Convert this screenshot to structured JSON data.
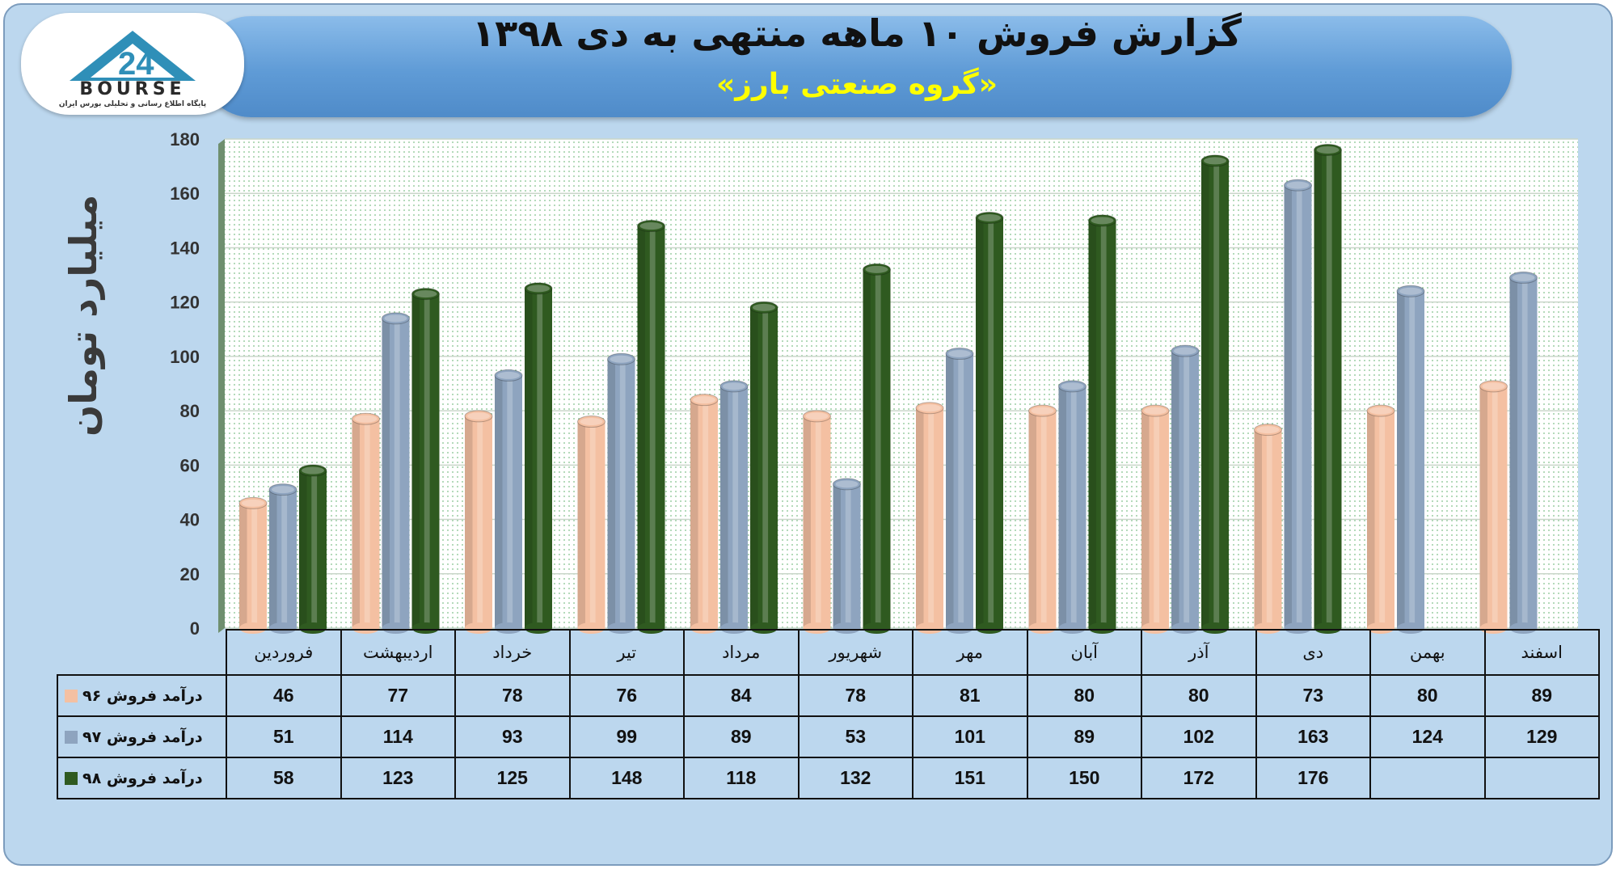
{
  "header": {
    "title": "گزارش فروش ۱۰ ماهه منتهی به دی ۱۳۹۸",
    "subtitle": "«گروه صنعتی بارز»"
  },
  "logo": {
    "word": "BOURSE",
    "tagline": "پایگاه اطلاع رسانی و تحلیلی بورس ایران"
  },
  "colors": {
    "series96": "#f4c0a2",
    "series97": "#8ea4bf",
    "series98": "#2f5a20",
    "plot_bg": "#ffffff",
    "plot_dots": "#7fbf8a"
  },
  "chart_data": {
    "type": "bar",
    "ylabel": "میلیارد تومان",
    "ylim": [
      0,
      180
    ],
    "yticks": [
      0,
      20,
      40,
      60,
      80,
      100,
      120,
      140,
      160,
      180
    ],
    "grid": true,
    "categories": [
      "فروردین",
      "اردیبهشت",
      "خرداد",
      "تیر",
      "مرداد",
      "شهریور",
      "مهر",
      "آبان",
      "آذر",
      "دی",
      "بهمن",
      "اسفند"
    ],
    "series": [
      {
        "name": "درآمد فروش ۹۶",
        "color": "#f4c0a2",
        "values": [
          46,
          77,
          78,
          76,
          84,
          78,
          81,
          80,
          80,
          73,
          80,
          89
        ]
      },
      {
        "name": "درآمد فروش ۹۷",
        "color": "#8ea4bf",
        "values": [
          51,
          114,
          93,
          99,
          89,
          53,
          101,
          89,
          102,
          163,
          124,
          129
        ]
      },
      {
        "name": "درآمد فروش ۹۸",
        "color": "#2f5a20",
        "values": [
          58,
          123,
          125,
          148,
          118,
          132,
          151,
          150,
          172,
          176,
          null,
          null
        ]
      }
    ]
  }
}
